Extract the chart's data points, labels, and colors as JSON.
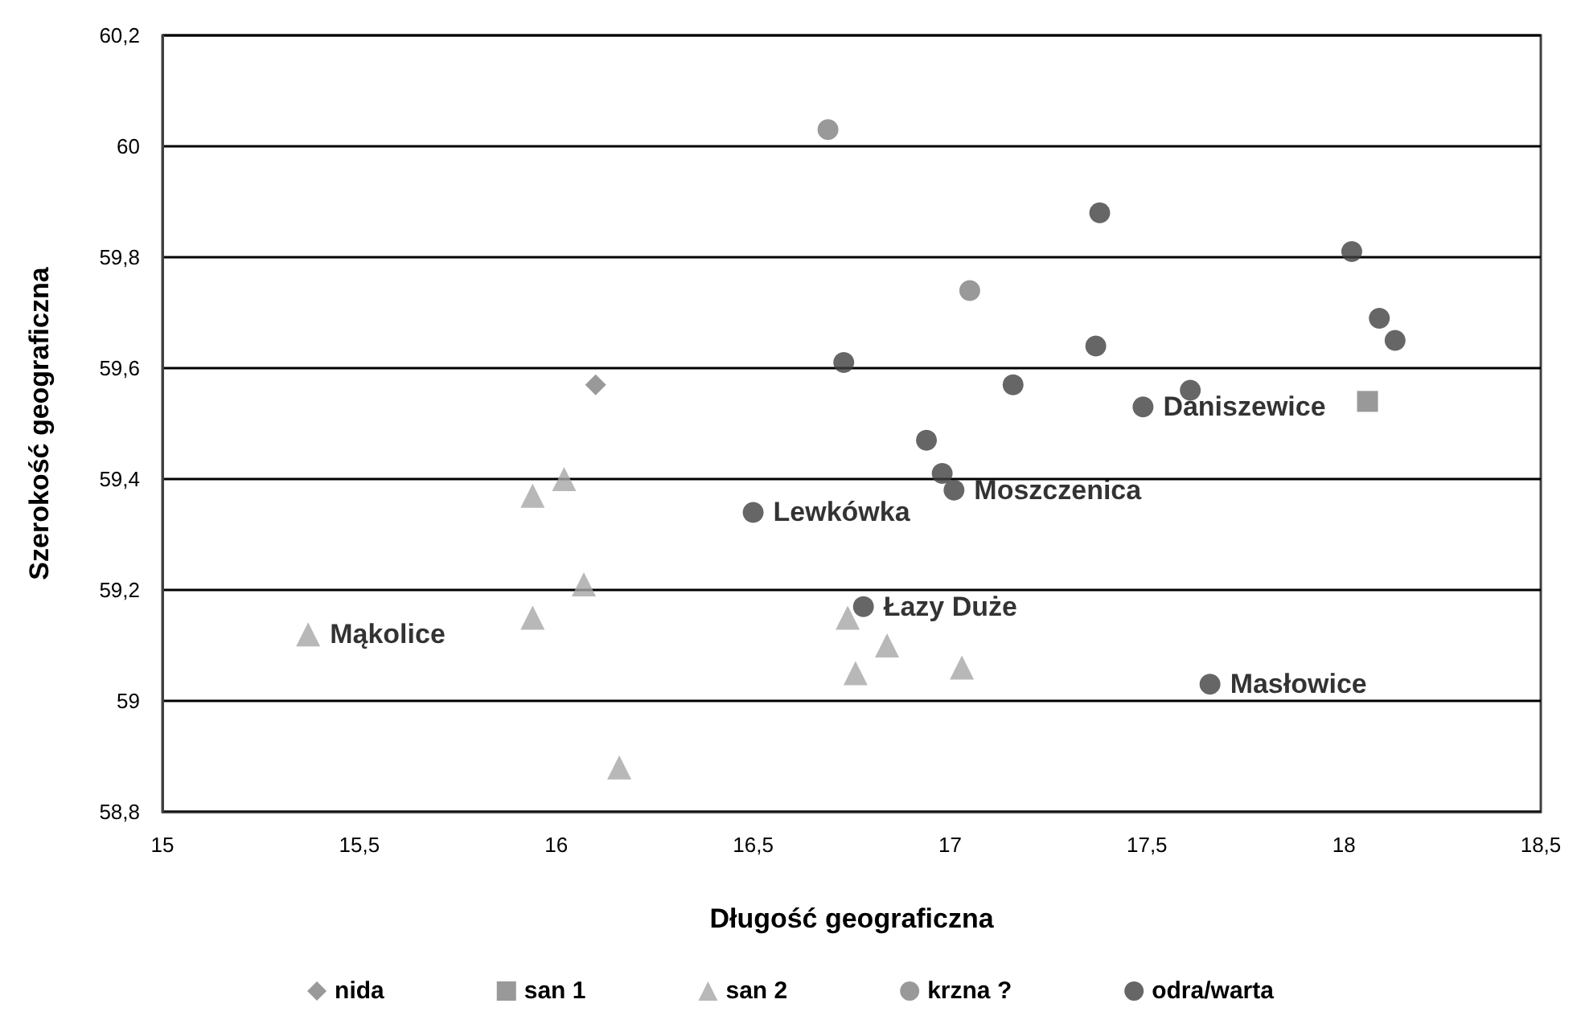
{
  "chart_data": {
    "type": "scatter",
    "xlabel": "Długość geograficzna",
    "ylabel": "Szerokość geograficzna",
    "xlim": [
      15,
      18.5
    ],
    "xticks": [
      15,
      {
        "value": 15.5,
        "label": "15,5"
      },
      16,
      {
        "value": 16.5,
        "label": "16,5"
      },
      17,
      {
        "value": 17.5,
        "label": "17,5"
      },
      18,
      {
        "value": 18.5,
        "label": "18,5"
      }
    ],
    "ylim": [
      58.8,
      60.2
    ],
    "yticks": [
      {
        "value": 58.8,
        "label": "58,8"
      },
      59,
      {
        "value": 59.2,
        "label": "59,2"
      },
      {
        "value": 59.4,
        "label": "59,4"
      },
      {
        "value": 59.6,
        "label": "59,6"
      },
      {
        "value": 59.8,
        "label": "59,8"
      },
      60,
      {
        "value": 60.2,
        "label": "60,2"
      }
    ],
    "grid": "y",
    "legend": "bottom",
    "series": [
      {
        "name": "nida",
        "color": "#7f7f7f",
        "marker": "diamond",
        "x": [
          16.1
        ],
        "values": [
          59.57
        ]
      },
      {
        "name": "san 1",
        "color": "#7f7f7f",
        "marker": "square",
        "x": [
          18.06
        ],
        "values": [
          59.54
        ]
      },
      {
        "name": "san 2",
        "color": "#a6a6a6",
        "marker": "triangle",
        "x": [
          15.94,
          16.02,
          16.07,
          15.94,
          15.37,
          16.16,
          16.74,
          16.84,
          16.76,
          17.03
        ],
        "values": [
          59.37,
          59.4,
          59.21,
          59.15,
          59.12,
          58.88,
          59.15,
          59.1,
          59.05,
          59.06
        ]
      },
      {
        "name": "krzna ?",
        "color": "#808080",
        "marker": "circle",
        "x": [
          16.69,
          17.05
        ],
        "values": [
          60.03,
          59.74
        ]
      },
      {
        "name": "odra/warta",
        "color": "#404040",
        "marker": "circle",
        "x": [
          16.73,
          17.38,
          18.02,
          18.09,
          18.13,
          17.37,
          17.16,
          17.61,
          17.49,
          16.94,
          16.98,
          17.01,
          16.5,
          16.78,
          17.66
        ],
        "values": [
          59.61,
          59.88,
          59.81,
          59.69,
          59.65,
          59.64,
          59.57,
          59.56,
          59.53,
          59.47,
          59.41,
          59.38,
          59.34,
          59.17,
          59.03
        ]
      }
    ],
    "annotations": [
      {
        "text": "Mąkolice",
        "x": 15.37,
        "y": 59.12
      },
      {
        "text": "Lewkówka",
        "x": 16.5,
        "y": 59.34
      },
      {
        "text": "Moszczenica",
        "x": 17.01,
        "y": 59.38
      },
      {
        "text": "Daniszewice",
        "x": 17.49,
        "y": 59.53
      },
      {
        "text": "Łazy Duże",
        "x": 16.78,
        "y": 59.17
      },
      {
        "text": "Masłowice",
        "x": 17.66,
        "y": 59.03
      }
    ]
  }
}
